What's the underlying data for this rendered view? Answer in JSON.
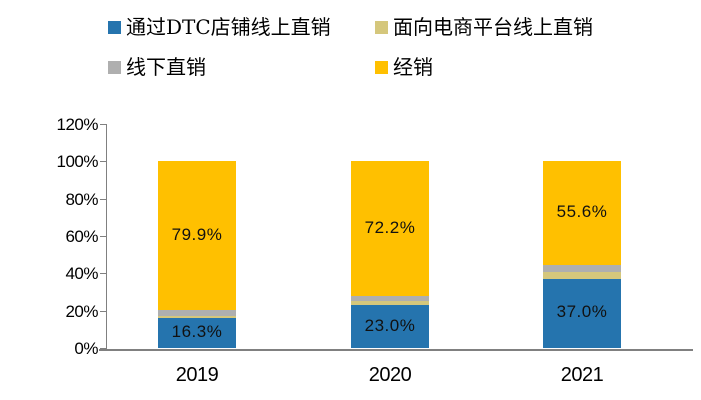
{
  "chart_data": {
    "type": "bar",
    "stacked": true,
    "title": "",
    "categories": [
      "2019",
      "2020",
      "2021"
    ],
    "series": [
      {
        "name": "通过DTC店铺线上直销",
        "color": "#2574AE",
        "values": [
          16.3,
          23.0,
          37.0
        ],
        "labels": [
          "16.3%",
          "23.0%",
          "37.0%"
        ]
      },
      {
        "name": "面向电商平台线上直销",
        "color": "#D5C77C",
        "values": [
          0.6,
          2.2,
          3.7
        ],
        "labels": [
          null,
          null,
          null
        ]
      },
      {
        "name": "线下直销",
        "color": "#AFAFAF",
        "values": [
          3.2,
          2.6,
          3.7
        ],
        "labels": [
          null,
          null,
          null
        ]
      },
      {
        "name": "经销",
        "color": "#FFC000",
        "values": [
          79.9,
          72.2,
          55.6
        ],
        "labels": [
          "79.9%",
          "72.2%",
          "55.6%"
        ]
      }
    ],
    "yticks": [
      "0%",
      "20%",
      "40%",
      "60%",
      "80%",
      "100%",
      "120%"
    ],
    "ylim": [
      0,
      120
    ],
    "xlabel": "",
    "ylabel": "",
    "grid": false,
    "legend_position": "top",
    "axis_color": "#808080",
    "label_text_color": "#000000"
  }
}
